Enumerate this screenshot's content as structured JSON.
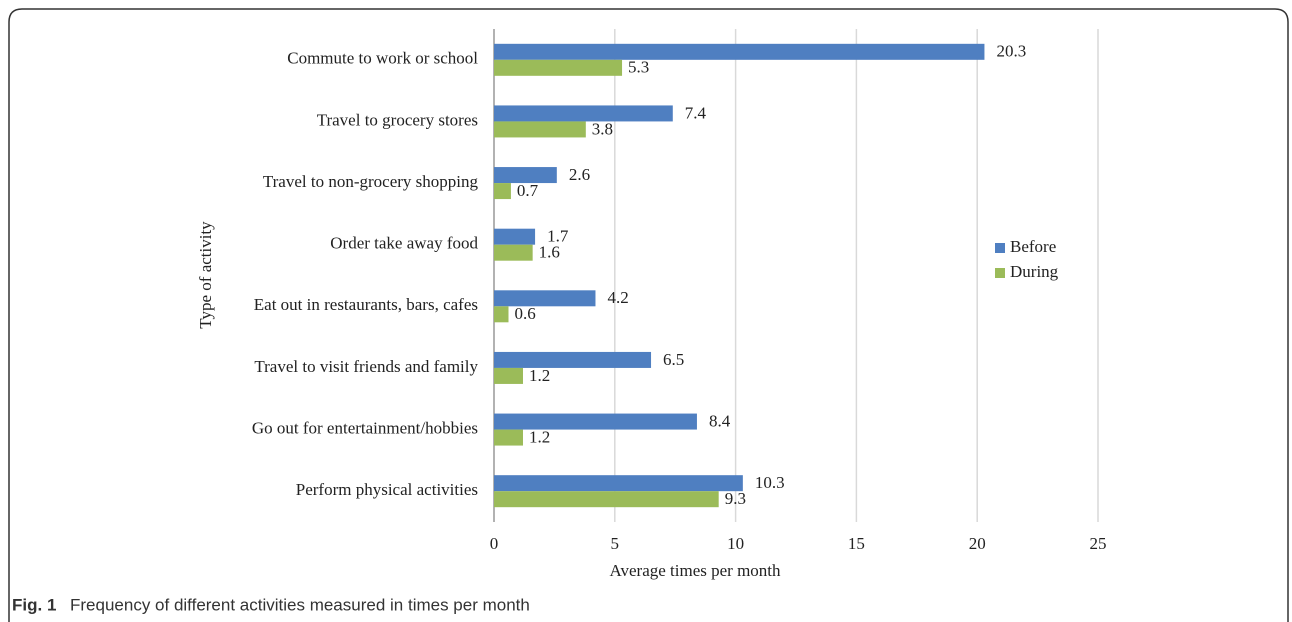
{
  "chart_data": {
    "type": "hbar",
    "categories": [
      "Commute to work or school",
      "Travel to grocery stores",
      "Travel to non-grocery shopping",
      "Order take away food",
      "Eat out in restaurants, bars, cafes",
      "Travel to visit friends and family",
      "Go out for entertainment/hobbies",
      "Perform physical activities"
    ],
    "series": [
      {
        "name": "Before",
        "color": "#4f7fc1",
        "values": [
          20.3,
          7.4,
          2.6,
          1.7,
          4.2,
          6.5,
          8.4,
          10.3
        ]
      },
      {
        "name": "During",
        "color": "#9bbb59",
        "values": [
          5.3,
          3.8,
          0.7,
          1.6,
          0.6,
          1.2,
          1.2,
          9.3
        ]
      }
    ],
    "xlim": [
      0,
      25
    ],
    "xticks": [
      0,
      5,
      10,
      15,
      20,
      25
    ],
    "xlabel": "Average times per month",
    "ylabel": "Type of activity",
    "grid": true,
    "legend": "right",
    "caption_label": "Fig. 1",
    "caption": "Frequency of different activities measured in times per month"
  }
}
